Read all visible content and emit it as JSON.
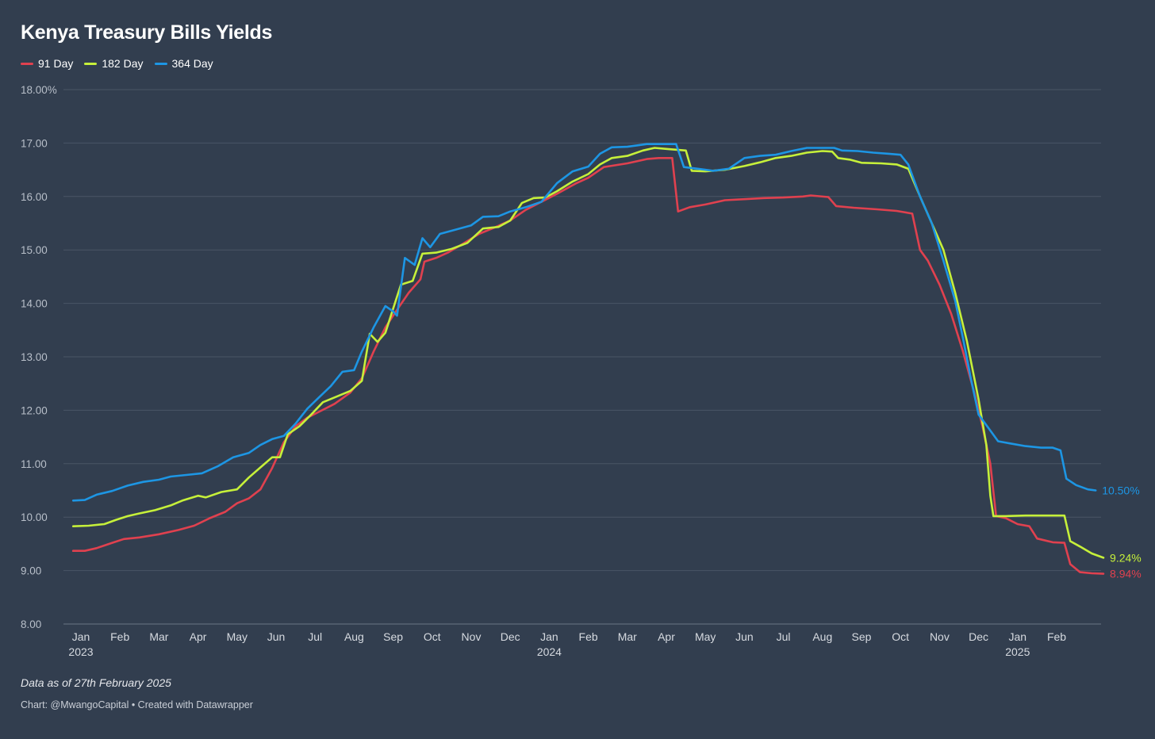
{
  "title": "Kenya Treasury Bills Yields",
  "note": "Data as of 27th February 2025",
  "credit": "Chart: @MwangoCapital • Created with Datawrapper",
  "chart_data": {
    "type": "line",
    "title": "Kenya Treasury Bills Yields",
    "xlabel": "",
    "ylabel": "",
    "ylim": [
      8,
      18
    ],
    "grid": true,
    "legend": "top-left",
    "y_ticks": [
      "18.00%",
      "17.00",
      "16.00",
      "15.00",
      "14.00",
      "13.00",
      "12.00",
      "11.00",
      "10.00",
      "9.00",
      "8.00"
    ],
    "x_ticks": [
      {
        "label": "Jan",
        "sub": "2023",
        "x": 0
      },
      {
        "label": "Feb",
        "sub": "",
        "x": 1
      },
      {
        "label": "Mar",
        "sub": "",
        "x": 2
      },
      {
        "label": "Apr",
        "sub": "",
        "x": 3
      },
      {
        "label": "May",
        "sub": "",
        "x": 4
      },
      {
        "label": "Jun",
        "sub": "",
        "x": 5
      },
      {
        "label": "Jul",
        "sub": "",
        "x": 6
      },
      {
        "label": "Aug",
        "sub": "",
        "x": 7
      },
      {
        "label": "Sep",
        "sub": "",
        "x": 8
      },
      {
        "label": "Oct",
        "sub": "",
        "x": 9
      },
      {
        "label": "Nov",
        "sub": "",
        "x": 10
      },
      {
        "label": "Dec",
        "sub": "",
        "x": 11
      },
      {
        "label": "Jan",
        "sub": "2024",
        "x": 12
      },
      {
        "label": "Feb",
        "sub": "",
        "x": 13
      },
      {
        "label": "Mar",
        "sub": "",
        "x": 14
      },
      {
        "label": "Apr",
        "sub": "",
        "x": 15
      },
      {
        "label": "May",
        "sub": "",
        "x": 16
      },
      {
        "label": "Jun",
        "sub": "",
        "x": 17
      },
      {
        "label": "Jul",
        "sub": "",
        "x": 18
      },
      {
        "label": "Aug",
        "sub": "",
        "x": 19
      },
      {
        "label": "Sep",
        "sub": "",
        "x": 20
      },
      {
        "label": "Oct",
        "sub": "",
        "x": 21
      },
      {
        "label": "Nov",
        "sub": "",
        "x": 22
      },
      {
        "label": "Dec",
        "sub": "",
        "x": 23
      },
      {
        "label": "Jan",
        "sub": "2025",
        "x": 24
      },
      {
        "label": "Feb",
        "sub": "",
        "x": 25
      }
    ],
    "series": [
      {
        "name": "91 Day",
        "color": "#e0414f",
        "end_label": "8.94%",
        "points": [
          [
            -0.2,
            9.37
          ],
          [
            0.1,
            9.37
          ],
          [
            0.4,
            9.42
          ],
          [
            0.8,
            9.52
          ],
          [
            1.1,
            9.59
          ],
          [
            1.5,
            9.62
          ],
          [
            2.0,
            9.68
          ],
          [
            2.5,
            9.76
          ],
          [
            2.9,
            9.84
          ],
          [
            3.3,
            9.98
          ],
          [
            3.7,
            10.1
          ],
          [
            4.0,
            10.26
          ],
          [
            4.3,
            10.35
          ],
          [
            4.6,
            10.52
          ],
          [
            4.9,
            10.92
          ],
          [
            5.2,
            11.4
          ],
          [
            5.5,
            11.7
          ],
          [
            5.8,
            11.86
          ],
          [
            6.1,
            11.97
          ],
          [
            6.5,
            12.12
          ],
          [
            6.9,
            12.33
          ],
          [
            7.2,
            12.6
          ],
          [
            7.5,
            13.1
          ],
          [
            7.8,
            13.55
          ],
          [
            8.1,
            13.88
          ],
          [
            8.4,
            14.2
          ],
          [
            8.7,
            14.45
          ],
          [
            8.8,
            14.78
          ],
          [
            9.1,
            14.85
          ],
          [
            9.4,
            14.95
          ],
          [
            9.8,
            15.12
          ],
          [
            10.2,
            15.3
          ],
          [
            10.6,
            15.42
          ],
          [
            11.0,
            15.55
          ],
          [
            11.4,
            15.75
          ],
          [
            11.8,
            15.9
          ],
          [
            12.2,
            16.05
          ],
          [
            12.7,
            16.25
          ],
          [
            13.0,
            16.35
          ],
          [
            13.4,
            16.55
          ],
          [
            14.0,
            16.62
          ],
          [
            14.5,
            16.7
          ],
          [
            14.8,
            16.72
          ],
          [
            15.15,
            16.72
          ],
          [
            15.3,
            15.72
          ],
          [
            15.6,
            15.8
          ],
          [
            16.0,
            15.85
          ],
          [
            16.5,
            15.93
          ],
          [
            17.0,
            15.95
          ],
          [
            17.5,
            15.97
          ],
          [
            18.0,
            15.98
          ],
          [
            18.5,
            16.0
          ],
          [
            18.7,
            16.02
          ],
          [
            19.15,
            15.99
          ],
          [
            19.35,
            15.82
          ],
          [
            19.8,
            15.79
          ],
          [
            20.4,
            15.76
          ],
          [
            20.9,
            15.73
          ],
          [
            21.3,
            15.68
          ],
          [
            21.5,
            15.0
          ],
          [
            21.7,
            14.8
          ],
          [
            22.0,
            14.35
          ],
          [
            22.3,
            13.8
          ],
          [
            22.6,
            13.1
          ],
          [
            22.9,
            12.3
          ],
          [
            23.1,
            11.7
          ],
          [
            23.3,
            11.0
          ],
          [
            23.45,
            10.02
          ],
          [
            23.7,
            9.98
          ],
          [
            24.0,
            9.87
          ],
          [
            24.3,
            9.83
          ],
          [
            24.5,
            9.6
          ],
          [
            24.9,
            9.53
          ],
          [
            25.2,
            9.52
          ],
          [
            25.35,
            9.12
          ],
          [
            25.6,
            8.97
          ],
          [
            25.9,
            8.95
          ],
          [
            26.2,
            8.94
          ]
        ]
      },
      {
        "name": "182 Day",
        "color": "#c6f03a",
        "end_label": "9.24%",
        "points": [
          [
            -0.2,
            9.83
          ],
          [
            0.2,
            9.84
          ],
          [
            0.6,
            9.87
          ],
          [
            0.9,
            9.95
          ],
          [
            1.2,
            10.02
          ],
          [
            1.5,
            10.07
          ],
          [
            1.9,
            10.13
          ],
          [
            2.3,
            10.22
          ],
          [
            2.6,
            10.31
          ],
          [
            3.0,
            10.4
          ],
          [
            3.2,
            10.37
          ],
          [
            3.6,
            10.47
          ],
          [
            4.0,
            10.52
          ],
          [
            4.3,
            10.74
          ],
          [
            4.6,
            10.93
          ],
          [
            4.9,
            11.12
          ],
          [
            5.1,
            11.12
          ],
          [
            5.3,
            11.55
          ],
          [
            5.6,
            11.7
          ],
          [
            5.9,
            11.92
          ],
          [
            6.2,
            12.15
          ],
          [
            6.6,
            12.27
          ],
          [
            6.9,
            12.36
          ],
          [
            7.2,
            12.55
          ],
          [
            7.4,
            13.43
          ],
          [
            7.6,
            13.28
          ],
          [
            7.8,
            13.45
          ],
          [
            8.0,
            13.9
          ],
          [
            8.2,
            14.35
          ],
          [
            8.5,
            14.42
          ],
          [
            8.75,
            14.93
          ],
          [
            9.1,
            14.95
          ],
          [
            9.5,
            15.02
          ],
          [
            9.9,
            15.13
          ],
          [
            10.3,
            15.4
          ],
          [
            10.7,
            15.43
          ],
          [
            11.0,
            15.55
          ],
          [
            11.3,
            15.88
          ],
          [
            11.6,
            15.97
          ],
          [
            11.9,
            15.98
          ],
          [
            12.2,
            16.1
          ],
          [
            12.6,
            16.28
          ],
          [
            13.0,
            16.42
          ],
          [
            13.3,
            16.6
          ],
          [
            13.6,
            16.72
          ],
          [
            14.0,
            16.76
          ],
          [
            14.4,
            16.86
          ],
          [
            14.7,
            16.91
          ],
          [
            15.0,
            16.89
          ],
          [
            15.5,
            16.86
          ],
          [
            15.65,
            16.48
          ],
          [
            16.0,
            16.47
          ],
          [
            16.5,
            16.5
          ],
          [
            17.0,
            16.57
          ],
          [
            17.4,
            16.64
          ],
          [
            17.8,
            16.72
          ],
          [
            18.2,
            16.76
          ],
          [
            18.6,
            16.82
          ],
          [
            19.0,
            16.85
          ],
          [
            19.25,
            16.84
          ],
          [
            19.4,
            16.72
          ],
          [
            19.7,
            16.69
          ],
          [
            20.0,
            16.63
          ],
          [
            20.5,
            16.62
          ],
          [
            20.9,
            16.6
          ],
          [
            21.2,
            16.52
          ],
          [
            21.5,
            16.0
          ],
          [
            21.8,
            15.5
          ],
          [
            22.1,
            15.0
          ],
          [
            22.4,
            14.2
          ],
          [
            22.7,
            13.3
          ],
          [
            23.0,
            12.2
          ],
          [
            23.2,
            11.35
          ],
          [
            23.3,
            10.4
          ],
          [
            23.38,
            10.02
          ],
          [
            23.7,
            10.02
          ],
          [
            24.2,
            10.03
          ],
          [
            25.0,
            10.03
          ],
          [
            25.2,
            10.03
          ],
          [
            25.35,
            9.55
          ],
          [
            25.6,
            9.45
          ],
          [
            25.9,
            9.32
          ],
          [
            26.2,
            9.24
          ]
        ]
      },
      {
        "name": "364 Day",
        "color": "#1d96e4",
        "end_label": "10.50%",
        "points": [
          [
            -0.2,
            10.31
          ],
          [
            0.1,
            10.32
          ],
          [
            0.4,
            10.42
          ],
          [
            0.8,
            10.49
          ],
          [
            1.2,
            10.59
          ],
          [
            1.6,
            10.66
          ],
          [
            2.0,
            10.7
          ],
          [
            2.3,
            10.76
          ],
          [
            2.7,
            10.79
          ],
          [
            3.1,
            10.82
          ],
          [
            3.5,
            10.95
          ],
          [
            3.9,
            11.12
          ],
          [
            4.3,
            11.2
          ],
          [
            4.6,
            11.35
          ],
          [
            4.9,
            11.46
          ],
          [
            5.2,
            11.52
          ],
          [
            5.5,
            11.75
          ],
          [
            5.8,
            12.03
          ],
          [
            6.1,
            12.24
          ],
          [
            6.4,
            12.45
          ],
          [
            6.7,
            12.72
          ],
          [
            7.0,
            12.75
          ],
          [
            7.2,
            13.1
          ],
          [
            7.5,
            13.55
          ],
          [
            7.8,
            13.95
          ],
          [
            8.0,
            13.85
          ],
          [
            8.1,
            13.77
          ],
          [
            8.3,
            14.85
          ],
          [
            8.55,
            14.72
          ],
          [
            8.75,
            15.22
          ],
          [
            8.95,
            15.05
          ],
          [
            9.2,
            15.3
          ],
          [
            9.6,
            15.38
          ],
          [
            10.0,
            15.46
          ],
          [
            10.3,
            15.62
          ],
          [
            10.7,
            15.63
          ],
          [
            11.0,
            15.72
          ],
          [
            11.4,
            15.8
          ],
          [
            11.8,
            15.9
          ],
          [
            12.2,
            16.25
          ],
          [
            12.6,
            16.47
          ],
          [
            13.0,
            16.56
          ],
          [
            13.3,
            16.8
          ],
          [
            13.6,
            16.92
          ],
          [
            14.0,
            16.93
          ],
          [
            14.5,
            16.98
          ],
          [
            15.25,
            16.98
          ],
          [
            15.45,
            16.55
          ],
          [
            15.8,
            16.52
          ],
          [
            16.2,
            16.48
          ],
          [
            16.6,
            16.52
          ],
          [
            17.0,
            16.72
          ],
          [
            17.4,
            16.76
          ],
          [
            17.8,
            16.78
          ],
          [
            18.2,
            16.85
          ],
          [
            18.6,
            16.91
          ],
          [
            19.3,
            16.91
          ],
          [
            19.5,
            16.86
          ],
          [
            19.9,
            16.85
          ],
          [
            20.3,
            16.82
          ],
          [
            20.7,
            16.8
          ],
          [
            21.0,
            16.78
          ],
          [
            21.2,
            16.6
          ],
          [
            21.5,
            16.0
          ],
          [
            21.8,
            15.5
          ],
          [
            22.1,
            14.8
          ],
          [
            22.4,
            14.05
          ],
          [
            22.6,
            13.35
          ],
          [
            22.8,
            12.6
          ],
          [
            23.0,
            11.92
          ],
          [
            23.3,
            11.62
          ],
          [
            23.5,
            11.42
          ],
          [
            23.8,
            11.38
          ],
          [
            24.2,
            11.33
          ],
          [
            24.6,
            11.3
          ],
          [
            24.9,
            11.3
          ],
          [
            25.1,
            11.25
          ],
          [
            25.25,
            10.72
          ],
          [
            25.5,
            10.6
          ],
          [
            25.8,
            10.52
          ],
          [
            26.0,
            10.5
          ]
        ]
      }
    ]
  }
}
